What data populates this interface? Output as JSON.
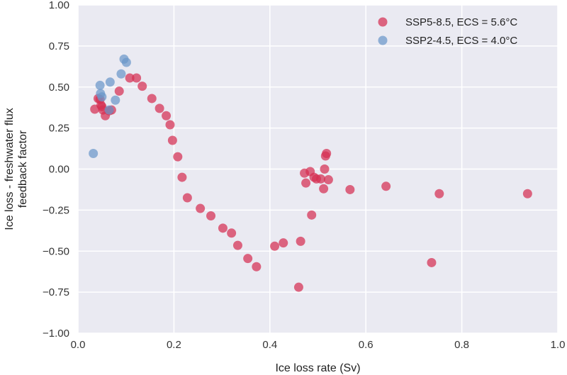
{
  "chart_data": {
    "type": "scatter",
    "xlabel": "Ice loss rate (Sv)",
    "ylabel": "Ice loss - freshwater flux feedback factor",
    "ylabel_lines": [
      "Ice loss - freshwater flux",
      "feedback factor"
    ],
    "xlim": [
      0.0,
      1.0
    ],
    "ylim": [
      -1.0,
      1.0
    ],
    "xticks": [
      0.0,
      0.2,
      0.4,
      0.6,
      0.8,
      1.0
    ],
    "yticks": [
      -1.0,
      -0.75,
      -0.5,
      -0.25,
      0.0,
      0.25,
      0.5,
      0.75,
      1.0
    ],
    "xtick_labels": [
      "0.0",
      "0.2",
      "0.4",
      "0.6",
      "0.8",
      "1.0"
    ],
    "ytick_labels": [
      "−1.00",
      "−0.75",
      "−0.50",
      "−0.25",
      "0.00",
      "0.25",
      "0.50",
      "0.75",
      "1.00"
    ],
    "grid": true,
    "legend_position": "top-right",
    "background_color": "#eaeaf2",
    "series": [
      {
        "name": "SSP5-8.5, ECS = 5.6°C",
        "color": "#d62f52",
        "points": [
          [
            0.035,
            0.365
          ],
          [
            0.042,
            0.43
          ],
          [
            0.046,
            0.425
          ],
          [
            0.048,
            0.39
          ],
          [
            0.05,
            0.38
          ],
          [
            0.052,
            0.36
          ],
          [
            0.057,
            0.325
          ],
          [
            0.065,
            0.355
          ],
          [
            0.07,
            0.36
          ],
          [
            0.086,
            0.475
          ],
          [
            0.108,
            0.555
          ],
          [
            0.122,
            0.555
          ],
          [
            0.134,
            0.505
          ],
          [
            0.154,
            0.43
          ],
          [
            0.17,
            0.37
          ],
          [
            0.184,
            0.325
          ],
          [
            0.192,
            0.27
          ],
          [
            0.197,
            0.175
          ],
          [
            0.208,
            0.075
          ],
          [
            0.217,
            -0.05
          ],
          [
            0.228,
            -0.175
          ],
          [
            0.255,
            -0.24
          ],
          [
            0.277,
            -0.285
          ],
          [
            0.302,
            -0.36
          ],
          [
            0.32,
            -0.39
          ],
          [
            0.333,
            -0.465
          ],
          [
            0.354,
            -0.545
          ],
          [
            0.372,
            -0.595
          ],
          [
            0.41,
            -0.47
          ],
          [
            0.428,
            -0.45
          ],
          [
            0.46,
            -0.72
          ],
          [
            0.464,
            -0.44
          ],
          [
            0.472,
            -0.025
          ],
          [
            0.475,
            -0.085
          ],
          [
            0.484,
            -0.015
          ],
          [
            0.487,
            -0.28
          ],
          [
            0.492,
            -0.05
          ],
          [
            0.497,
            -0.06
          ],
          [
            0.506,
            -0.06
          ],
          [
            0.512,
            -0.12
          ],
          [
            0.514,
            0.0
          ],
          [
            0.516,
            0.08
          ],
          [
            0.518,
            0.095
          ],
          [
            0.522,
            -0.065
          ],
          [
            0.567,
            -0.125
          ],
          [
            0.642,
            -0.105
          ],
          [
            0.737,
            -0.57
          ],
          [
            0.753,
            -0.15
          ],
          [
            0.937,
            -0.15
          ]
        ]
      },
      {
        "name": "SSP2-4.5, ECS = 4.0°C",
        "color": "#6b97c9",
        "points": [
          [
            0.032,
            0.095
          ],
          [
            0.046,
            0.51
          ],
          [
            0.047,
            0.46
          ],
          [
            0.05,
            0.44
          ],
          [
            0.065,
            0.36
          ],
          [
            0.067,
            0.53
          ],
          [
            0.078,
            0.42
          ],
          [
            0.09,
            0.58
          ],
          [
            0.096,
            0.67
          ],
          [
            0.101,
            0.65
          ]
        ]
      }
    ]
  }
}
